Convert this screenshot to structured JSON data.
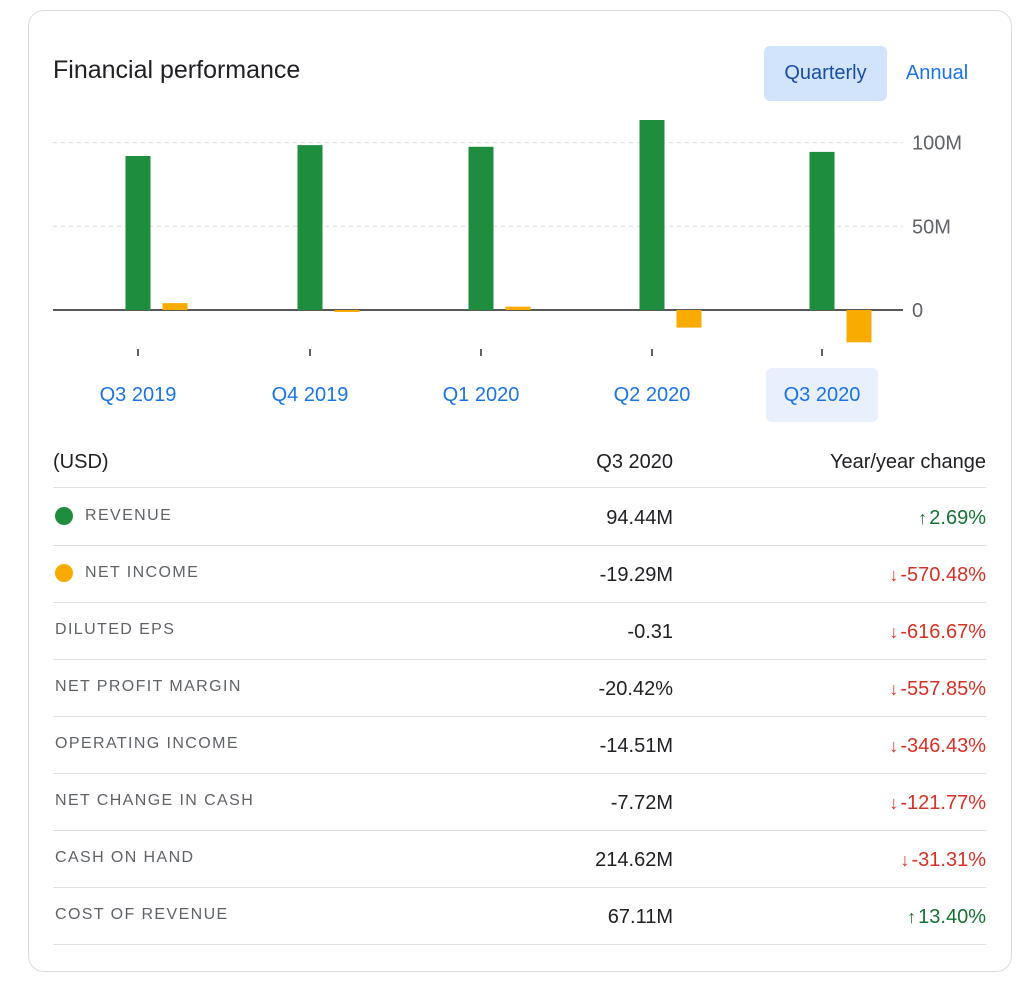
{
  "card": {
    "title": "Financial performance",
    "periods": {
      "quarterly": "Quarterly",
      "annual": "Annual",
      "selected": "quarterly"
    }
  },
  "chart_data": {
    "type": "bar",
    "categories": [
      "Q3 2019",
      "Q4 2019",
      "Q1 2020",
      "Q2 2020",
      "Q3 2020"
    ],
    "selected_category": "Q3 2020",
    "series": [
      {
        "name": "REVENUE",
        "color": "#1e8e3e",
        "values": [
          92.0,
          98.5,
          97.5,
          113.5,
          94.44
        ]
      },
      {
        "name": "NET INCOME",
        "color": "#f9ab00",
        "values": [
          4.1,
          -0.5,
          2.0,
          -10.5,
          -19.29
        ]
      }
    ],
    "y_ticks": [
      {
        "value": 0,
        "label": "0"
      },
      {
        "value": 50,
        "label": "50M"
      },
      {
        "value": 100,
        "label": "100M"
      }
    ],
    "ylim": [
      -25,
      120
    ],
    "grid": true,
    "y_axis_position": "right"
  },
  "table": {
    "header": {
      "unit": "(USD)",
      "period": "Q3 2020",
      "change": "Year/year change"
    },
    "rows": [
      {
        "label": "REVENUE",
        "dot": "#1e8e3e",
        "value": "94.44M",
        "change": "2.69%",
        "dir": "up"
      },
      {
        "label": "NET INCOME",
        "dot": "#f9ab00",
        "value": "-19.29M",
        "change": "-570.48%",
        "dir": "down"
      },
      {
        "label": "DILUTED EPS",
        "dot": "",
        "value": "-0.31",
        "change": "-616.67%",
        "dir": "down"
      },
      {
        "label": "NET PROFIT MARGIN",
        "dot": "",
        "value": "-20.42%",
        "change": "-557.85%",
        "dir": "down"
      },
      {
        "label": "OPERATING INCOME",
        "dot": "",
        "value": "-14.51M",
        "change": "-346.43%",
        "dir": "down"
      },
      {
        "label": "NET CHANGE IN CASH",
        "dot": "",
        "value": "-7.72M",
        "change": "-121.77%",
        "dir": "down"
      },
      {
        "label": "CASH ON HAND",
        "dot": "",
        "value": "214.62M",
        "change": "-31.31%",
        "dir": "down"
      },
      {
        "label": "COST OF REVENUE",
        "dot": "",
        "value": "67.11M",
        "change": "13.40%",
        "dir": "up"
      }
    ]
  },
  "icons": {
    "up": "arrow-up-icon",
    "down": "arrow-down-icon"
  }
}
